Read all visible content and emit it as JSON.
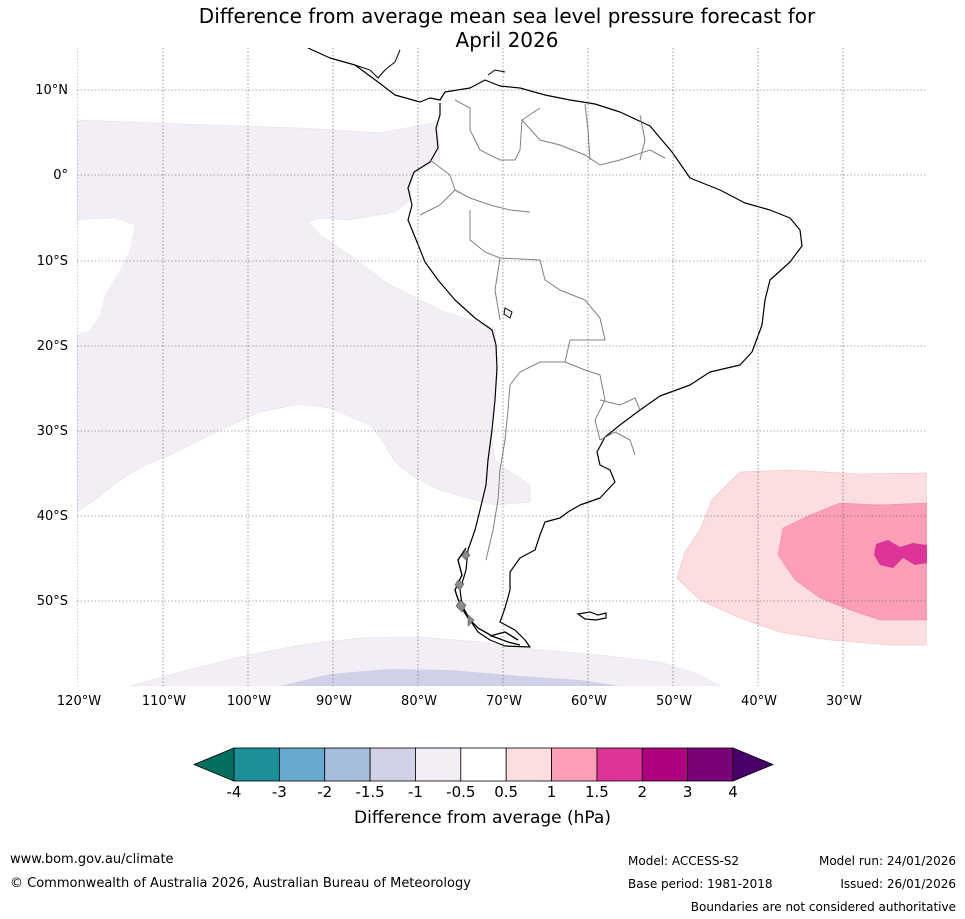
{
  "title": {
    "line1": "Difference from average mean sea level pressure forecast for",
    "line2": "April 2026"
  },
  "map": {
    "lat_labels": [
      "10°N",
      "0°",
      "10°S",
      "20°S",
      "30°S",
      "40°S",
      "50°S"
    ],
    "lon_labels": [
      "120°W",
      "110°W",
      "100°W",
      "90°W",
      "80°W",
      "70°W",
      "60°W",
      "50°W",
      "40°W",
      "30°W"
    ],
    "anomaly_regions": [
      {
        "region": "eastern Pacific",
        "category": "-1 to -0.5"
      },
      {
        "region": "Southern Ocean south of 55°S",
        "category": "-1 to -0.5"
      },
      {
        "region": "far south Pacific",
        "category": "-1.5 to -1"
      },
      {
        "region": "South Atlantic 35-55°S",
        "category": "0.5 to 1"
      },
      {
        "region": "South Atlantic core",
        "category": "1 to 1.5"
      },
      {
        "region": "South Atlantic peak",
        "category": "1.5 to 2"
      }
    ]
  },
  "colorbar": {
    "title": "Difference from average (hPa)",
    "ticks": [
      "-4",
      "-3",
      "-2",
      "-1.5",
      "-1",
      "-0.5",
      "0.5",
      "1",
      "1.5",
      "2",
      "3",
      "4"
    ],
    "colors": [
      "#1c9099",
      "#67a9cf",
      "#a6bddb",
      "#d0d1e6",
      "#f3eef6",
      "#ffffff",
      "#fddede",
      "#fa9fb5",
      "#dd3497",
      "#ae017e",
      "#7a0177"
    ],
    "low_extend_color": "#02705e",
    "high_extend_color": "#49006a"
  },
  "footer": {
    "website": "www.bom.gov.au/climate",
    "copyright": "© Commonwealth of Australia 2026, Australian Bureau of Meteorology",
    "model": "Model: ACCESS-S2",
    "base_period": "Base period: 1981-2018",
    "model_run": "Model run: 24/01/2026",
    "issued": "Issued: 26/01/2026",
    "disclaimer": "Boundaries are not considered authoritative"
  }
}
